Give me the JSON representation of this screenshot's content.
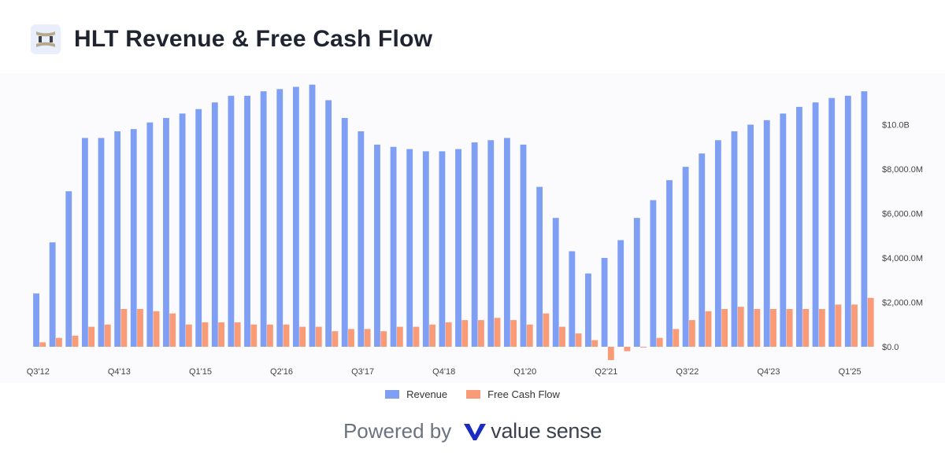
{
  "header": {
    "title": "HLT Revenue & Free Cash Flow",
    "logo_icon": "hilton-logo-icon"
  },
  "legend": {
    "revenue": "Revenue",
    "fcf": "Free Cash Flow"
  },
  "footer": {
    "powered_by": "Powered by",
    "brand": "value sense"
  },
  "colors": {
    "revenue": "#7f9ff5",
    "fcf": "#fa9b78",
    "brand": "#1b2cc1"
  },
  "chart_data": {
    "type": "bar",
    "x_tick_labels": [
      "Q3'12",
      "Q4'13",
      "Q1'15",
      "Q2'16",
      "Q3'17",
      "Q4'18",
      "Q1'20",
      "Q2'21",
      "Q3'22",
      "Q4'23",
      "Q1'25"
    ],
    "y_tick_labels": [
      "$0.0",
      "$2,000.0M",
      "$4,000.0M",
      "$6,000.0M",
      "$8,000.0M",
      "$10.0B"
    ],
    "y_axis_position": "right",
    "ylim": [
      -700,
      11800
    ],
    "legend_position": "bottom",
    "unit": "$M",
    "categories": [
      "Q3'12",
      "Q4'12",
      "Q1'13",
      "Q2'13",
      "Q3'13",
      "Q4'13",
      "Q1'14",
      "Q2'14",
      "Q3'14",
      "Q4'14",
      "Q1'15",
      "Q2'15",
      "Q3'15",
      "Q4'15",
      "Q1'16",
      "Q2'16",
      "Q3'16",
      "Q4'16",
      "Q1'17",
      "Q2'17",
      "Q3'17",
      "Q4'17",
      "Q1'18",
      "Q2'18",
      "Q3'18",
      "Q4'18",
      "Q1'19",
      "Q2'19",
      "Q3'19",
      "Q4'19",
      "Q1'20",
      "Q2'20",
      "Q3'20",
      "Q4'20",
      "Q1'21",
      "Q2'21",
      "Q3'21",
      "Q4'21",
      "Q1'22",
      "Q2'22",
      "Q3'22",
      "Q4'22",
      "Q1'23",
      "Q2'23",
      "Q3'23",
      "Q4'23",
      "Q1'24",
      "Q2'24",
      "Q3'24",
      "Q4'24",
      "Q1'25",
      "Q2'25"
    ],
    "series": [
      {
        "name": "Revenue",
        "values": [
          2400,
          4700,
          7000,
          9400,
          9400,
          9700,
          9800,
          10100,
          10300,
          10500,
          10700,
          11000,
          11300,
          11300,
          11500,
          11600,
          11700,
          11800,
          11100,
          10300,
          9700,
          9100,
          9000,
          8900,
          8800,
          8800,
          8900,
          9200,
          9300,
          9400,
          9100,
          7200,
          5800,
          4300,
          3300,
          4000,
          4800,
          5800,
          6600,
          7500,
          8100,
          8700,
          9300,
          9700,
          10000,
          10200,
          10500,
          10800,
          11000,
          11200,
          11300,
          11500
        ]
      },
      {
        "name": "Free Cash Flow",
        "values": [
          200,
          400,
          500,
          900,
          1000,
          1700,
          1700,
          1600,
          1500,
          1000,
          1100,
          1100,
          1100,
          1000,
          1000,
          1000,
          900,
          900,
          700,
          800,
          800,
          700,
          900,
          900,
          1000,
          1100,
          1200,
          1200,
          1300,
          1200,
          1000,
          1500,
          900,
          600,
          300,
          -600,
          -200,
          0,
          400,
          800,
          1200,
          1600,
          1700,
          1800,
          1700,
          1700,
          1700,
          1700,
          1700,
          1900,
          1900,
          2200
        ]
      }
    ]
  }
}
